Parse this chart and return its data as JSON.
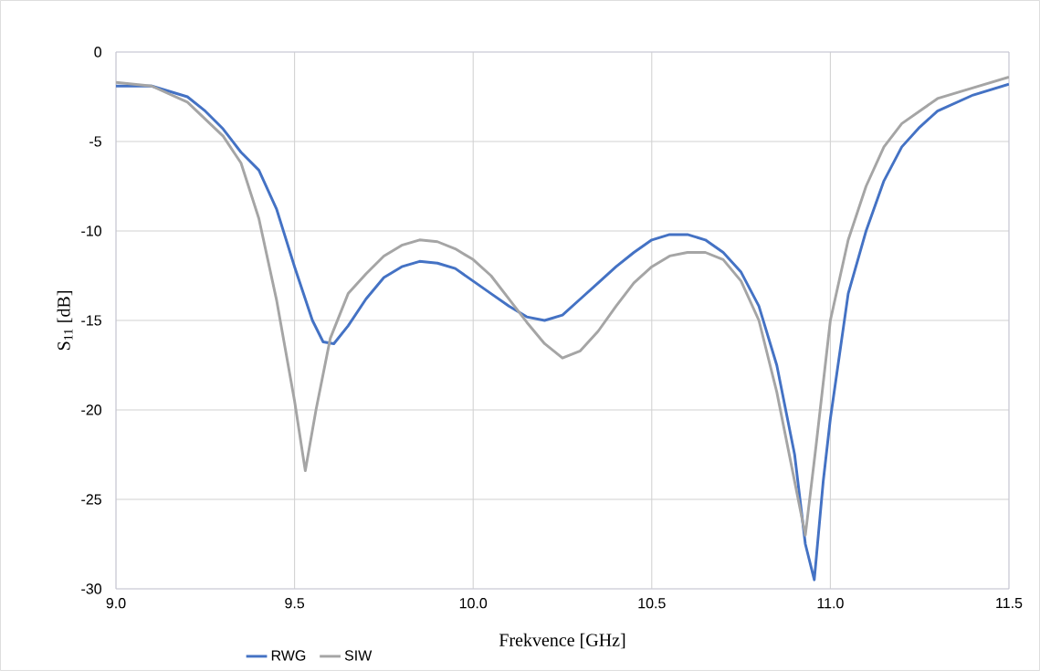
{
  "chart_data": {
    "type": "line",
    "xlabel": "Frekvence [GHz]",
    "ylabel": "S$_{11}$ [dB]",
    "xlim": [
      9.0,
      11.5
    ],
    "ylim": [
      -30,
      0
    ],
    "xticks": [
      {
        "value": 9.0,
        "label": "9.0"
      },
      {
        "value": 9.5,
        "label": "9.5"
      },
      {
        "value": 10.0,
        "label": "10.0"
      },
      {
        "value": 10.5,
        "label": "10.5"
      },
      {
        "value": 11.0,
        "label": "11.0"
      },
      {
        "value": 11.5,
        "label": "11.5"
      }
    ],
    "yticks": [
      0,
      -5,
      -10,
      -15,
      -20,
      -25,
      -30
    ],
    "grid": true,
    "legend": "bottom",
    "marker": "none",
    "line_style": "solid",
    "series": [
      {
        "name": "RWG",
        "color": "#4472c4",
        "x": [
          9.0,
          9.1,
          9.2,
          9.25,
          9.3,
          9.35,
          9.4,
          9.45,
          9.5,
          9.55,
          9.58,
          9.61,
          9.65,
          9.7,
          9.75,
          9.8,
          9.85,
          9.9,
          9.95,
          10.0,
          10.05,
          10.1,
          10.15,
          10.2,
          10.25,
          10.3,
          10.35,
          10.4,
          10.45,
          10.5,
          10.55,
          10.6,
          10.65,
          10.7,
          10.75,
          10.8,
          10.85,
          10.9,
          10.93,
          10.955,
          10.98,
          11.0,
          11.05,
          11.1,
          11.15,
          11.2,
          11.25,
          11.3,
          11.4,
          11.5
        ],
        "values": [
          -1.9,
          -1.9,
          -2.5,
          -3.3,
          -4.3,
          -5.6,
          -6.6,
          -8.8,
          -12.0,
          -15.0,
          -16.2,
          -16.3,
          -15.3,
          -13.8,
          -12.6,
          -12.0,
          -11.7,
          -11.8,
          -12.1,
          -12.8,
          -13.5,
          -14.2,
          -14.8,
          -15.0,
          -14.7,
          -13.8,
          -12.9,
          -12.0,
          -11.2,
          -10.5,
          -10.2,
          -10.2,
          -10.5,
          -11.2,
          -12.3,
          -14.2,
          -17.5,
          -22.5,
          -27.5,
          -29.5,
          -24.0,
          -20.5,
          -13.5,
          -10.0,
          -7.2,
          -5.3,
          -4.2,
          -3.3,
          -2.4,
          -1.8
        ]
      },
      {
        "name": "SIW",
        "color": "#a5a5a5",
        "x": [
          9.0,
          9.1,
          9.2,
          9.3,
          9.35,
          9.4,
          9.45,
          9.5,
          9.53,
          9.56,
          9.6,
          9.65,
          9.7,
          9.75,
          9.8,
          9.85,
          9.9,
          9.95,
          10.0,
          10.05,
          10.1,
          10.15,
          10.2,
          10.25,
          10.3,
          10.35,
          10.4,
          10.45,
          10.5,
          10.55,
          10.6,
          10.65,
          10.7,
          10.75,
          10.8,
          10.85,
          10.9,
          10.93,
          10.96,
          11.0,
          11.05,
          11.1,
          11.15,
          11.2,
          11.3,
          11.4,
          11.5
        ],
        "values": [
          -1.7,
          -1.9,
          -2.8,
          -4.7,
          -6.2,
          -9.3,
          -13.9,
          -19.5,
          -23.4,
          -20.0,
          -16.0,
          -13.5,
          -12.4,
          -11.4,
          -10.8,
          -10.5,
          -10.6,
          -11.0,
          -11.6,
          -12.5,
          -13.8,
          -15.1,
          -16.3,
          -17.1,
          -16.7,
          -15.6,
          -14.2,
          -12.9,
          -12.0,
          -11.4,
          -11.2,
          -11.2,
          -11.6,
          -12.8,
          -15.0,
          -19.0,
          -24.0,
          -27.0,
          -22.0,
          -15.0,
          -10.5,
          -7.5,
          -5.3,
          -4.0,
          -2.6,
          -2.0,
          -1.4
        ]
      }
    ]
  }
}
